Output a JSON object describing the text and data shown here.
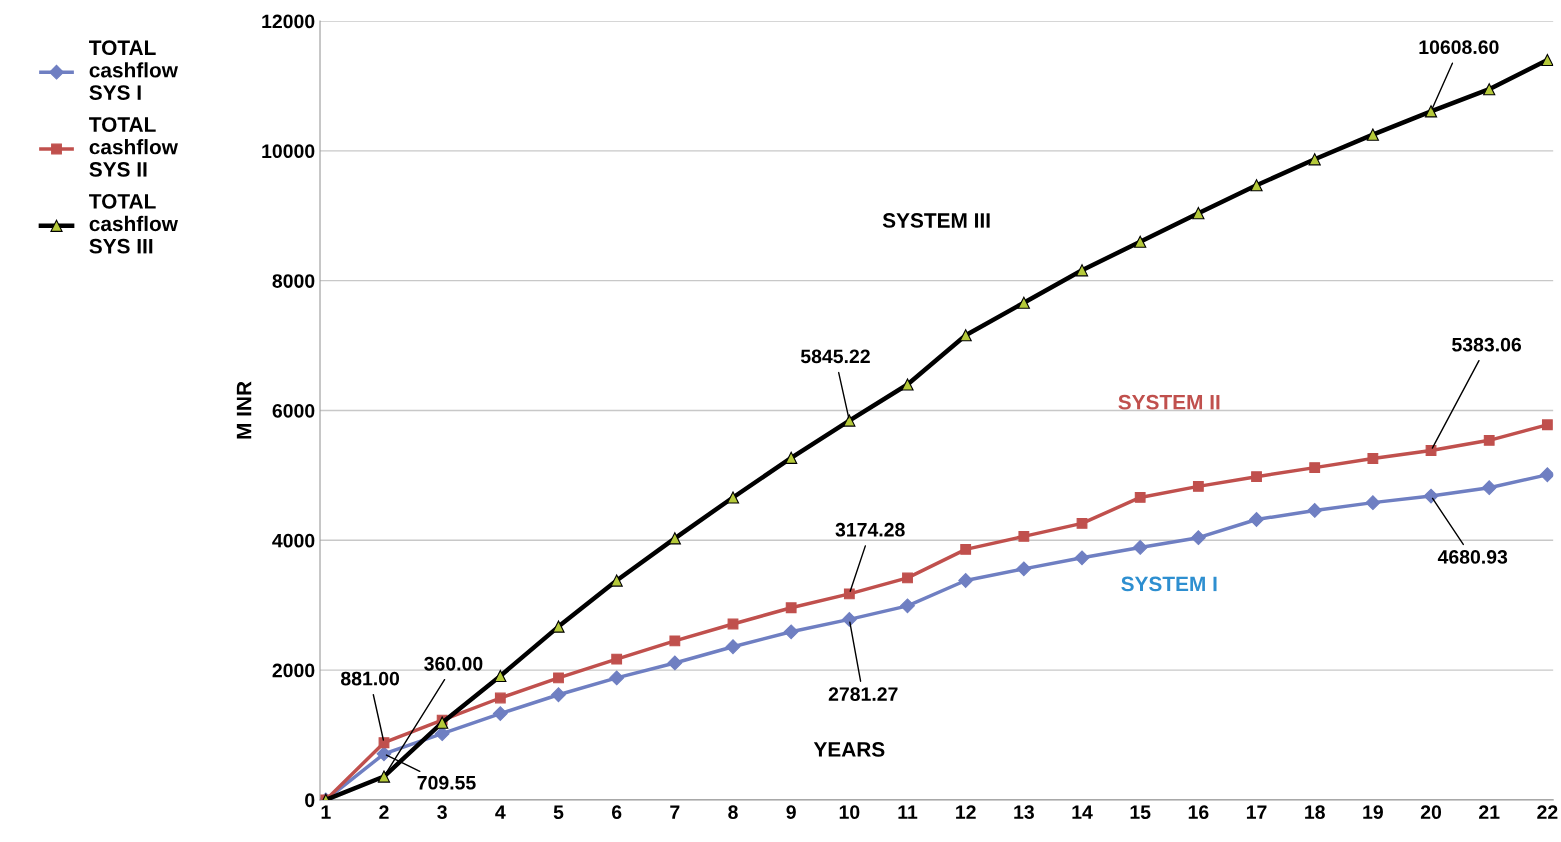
{
  "chart_data": {
    "type": "line",
    "categories": [
      "1",
      "2",
      "3",
      "4",
      "5",
      "6",
      "7",
      "8",
      "9",
      "10",
      "11",
      "12",
      "13",
      "14",
      "15",
      "16",
      "17",
      "18",
      "19",
      "20",
      "21",
      "22"
    ],
    "series": [
      {
        "name": "TOTAL\ncashflow\nSYS I",
        "color": "#6f7fc2",
        "marker": "diamond",
        "values": [
          0,
          709.55,
          1020,
          1330,
          1620,
          1880,
          2110,
          2360,
          2590,
          2781.27,
          2990,
          3380,
          3560,
          3730,
          3890,
          4040,
          4320,
          4460,
          4580,
          4680.93,
          4810,
          5010
        ]
      },
      {
        "name": "TOTAL\ncashflow\nSYS II",
        "color": "#c0504d",
        "marker": "square",
        "values": [
          0,
          881.0,
          1230,
          1570,
          1880,
          2170,
          2450,
          2710,
          2960,
          3174.28,
          3420,
          3860,
          4060,
          4260,
          4660,
          4830,
          4980,
          5120,
          5260,
          5383.06,
          5540,
          5780
        ]
      },
      {
        "name": "TOTAL\ncashflow\nSYS III",
        "color": "#000000",
        "marker": "triangle",
        "values": [
          0,
          360.0,
          1190,
          1910,
          2670,
          3380,
          4030,
          4660,
          5270,
          5845.22,
          6400,
          7160,
          7660,
          8160,
          8600,
          9040,
          9470,
          9870,
          10250,
          10608.6,
          10950,
          11400
        ]
      }
    ],
    "xlabel": "YEARS",
    "ylabel": "M INR",
    "ylim": [
      0,
      12000
    ],
    "yticks": [
      0,
      2000,
      4000,
      6000,
      8000,
      10000,
      12000
    ],
    "grid": "y",
    "legend": "left",
    "annotations": [
      {
        "text": "360.00",
        "x": "2",
        "y": 360.0
      },
      {
        "text": "881.00",
        "x": "2",
        "y": 881.0
      },
      {
        "text": "709.55",
        "x": "2",
        "y": 709.55
      },
      {
        "text": "5845.22",
        "x": "10",
        "y": 5845.22
      },
      {
        "text": "3174.28",
        "x": "10",
        "y": 3174.28
      },
      {
        "text": "2781.27",
        "x": "10",
        "y": 2781.27
      },
      {
        "text": "10608.60",
        "x": "20",
        "y": 10608.6
      },
      {
        "text": "5383.06",
        "x": "20",
        "y": 5383.06
      },
      {
        "text": "4680.93",
        "x": "20",
        "y": 4680.93
      },
      "SYSTEM III",
      "SYSTEM II",
      "SYSTEM I"
    ]
  }
}
